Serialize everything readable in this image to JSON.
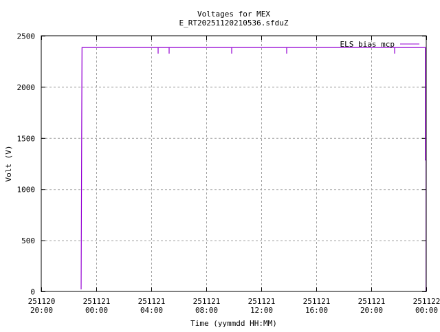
{
  "chart_data": {
    "type": "line",
    "title": "Voltages for MEX",
    "subtitle": "E_RT20251120210536.sfduZ",
    "xlabel": "Time (yymmdd HH:MM)",
    "ylabel": "Volt (V)",
    "xlim": [
      "251120 20:00",
      "251122 00:00"
    ],
    "ylim": [
      0,
      2500
    ],
    "yticks": [
      "0",
      "500",
      "1000",
      "1500",
      "2000",
      "2500"
    ],
    "xticks": [
      [
        "251120",
        "20:00"
      ],
      [
        "251121",
        "00:00"
      ],
      [
        "251121",
        "04:00"
      ],
      [
        "251121",
        "08:00"
      ],
      [
        "251121",
        "12:00"
      ],
      [
        "251121",
        "16:00"
      ],
      [
        "251121",
        "20:00"
      ],
      [
        "251122",
        "00:00"
      ]
    ],
    "grid": true,
    "legend_position": "top-right",
    "series": [
      {
        "name": "ELS bias mcp",
        "color": "#9400d3",
        "points": [
          [
            "251120 22:54",
            20
          ],
          [
            "251120 22:58",
            2385
          ],
          [
            "251121 04:30",
            2385
          ],
          [
            "251121 04:30",
            2325
          ],
          [
            "251121 04:30",
            2385
          ],
          [
            "251121 05:18",
            2385
          ],
          [
            "251121 05:18",
            2325
          ],
          [
            "251121 05:18",
            2385
          ],
          [
            "251121 09:51",
            2385
          ],
          [
            "251121 09:51",
            2325
          ],
          [
            "251121 09:51",
            2385
          ],
          [
            "251121 13:51",
            2385
          ],
          [
            "251121 13:51",
            2325
          ],
          [
            "251121 13:51",
            2385
          ],
          [
            "251121 21:42",
            2385
          ],
          [
            "251121 21:42",
            2325
          ],
          [
            "251121 21:42",
            2385
          ],
          [
            "251121 23:56",
            2385
          ],
          [
            "251121 23:56",
            1285
          ],
          [
            "251121 23:59",
            1285
          ],
          [
            "251121 23:59",
            5
          ]
        ]
      }
    ]
  }
}
